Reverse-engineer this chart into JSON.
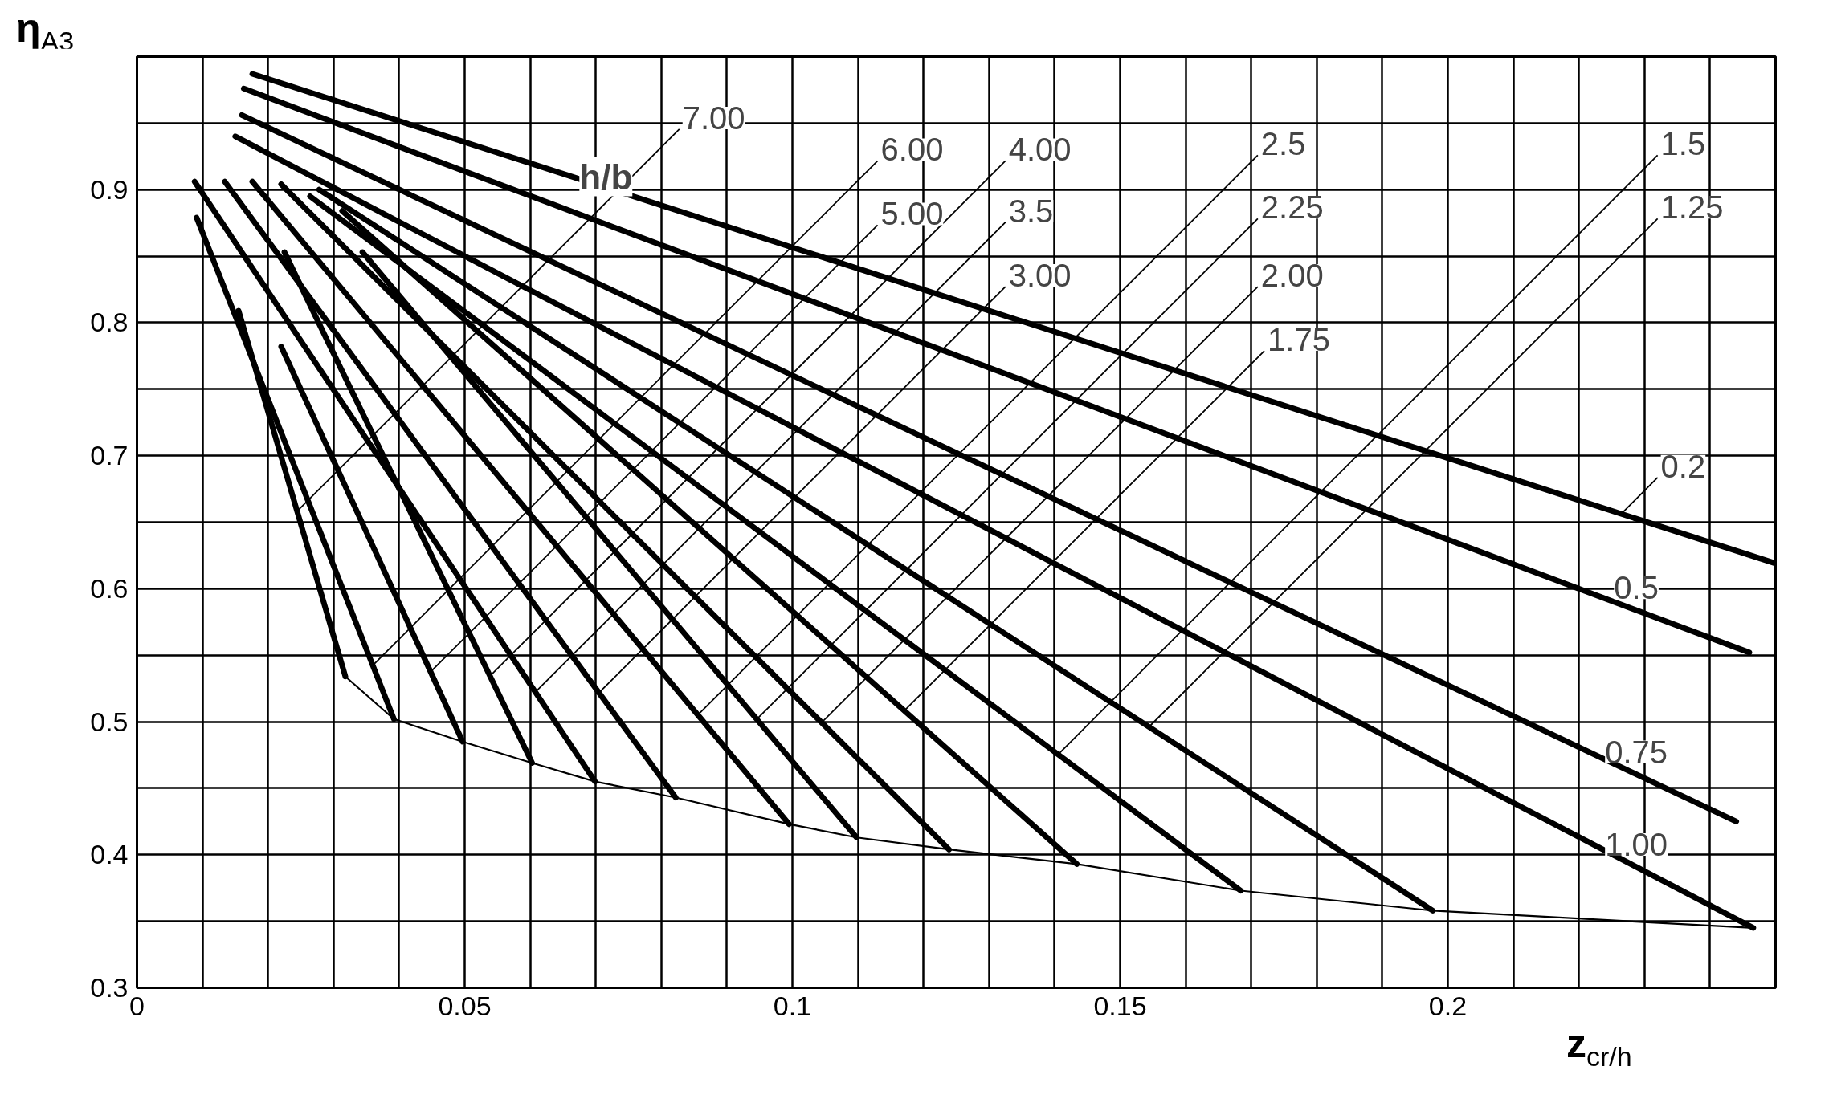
{
  "chart_data": {
    "type": "line",
    "xlabel": "z$_{cr/h}$",
    "ylabel": "η$_{A3}$",
    "legend_title": "h/b",
    "xlim": [
      0,
      0.25
    ],
    "ylim": [
      0.3,
      1.0
    ],
    "xticks": [
      0,
      {
        "value": 0.01,
        "label": null
      },
      {
        "value": 0.02,
        "label": null
      },
      {
        "value": 0.03,
        "label": null
      },
      {
        "value": 0.04,
        "label": null
      },
      0.05,
      {
        "value": 0.06,
        "label": null
      },
      {
        "value": 0.07,
        "label": null
      },
      {
        "value": 0.08,
        "label": null
      },
      {
        "value": 0.09,
        "label": null
      },
      0.1,
      {
        "value": 0.11,
        "label": null
      },
      {
        "value": 0.12,
        "label": null
      },
      {
        "value": 0.13,
        "label": null
      },
      {
        "value": 0.14,
        "label": null
      },
      0.15,
      {
        "value": 0.16,
        "label": null
      },
      {
        "value": 0.17,
        "label": null
      },
      {
        "value": 0.18,
        "label": null
      },
      {
        "value": 0.19,
        "label": null
      },
      0.2,
      {
        "value": 0.21,
        "label": null
      },
      {
        "value": 0.22,
        "label": null
      },
      {
        "value": 0.23,
        "label": null
      },
      {
        "value": 0.24,
        "label": null
      }
    ],
    "yticks": [
      0.3,
      {
        "value": 0.35,
        "label": null
      },
      0.4,
      {
        "value": 0.45,
        "label": null
      },
      0.5,
      {
        "value": 0.55,
        "label": null
      },
      0.6,
      {
        "value": 0.65,
        "label": null
      },
      0.7,
      {
        "value": 0.75,
        "label": null
      },
      0.8,
      {
        "value": 0.85,
        "label": null
      },
      0.9,
      {
        "value": 0.95,
        "label": null
      }
    ],
    "grid": true,
    "series": [
      {
        "name": "7.00",
        "color": "#000000",
        "x": [
          0.0155,
          0.0318
        ],
        "values": [
          0.809,
          0.534
        ]
      },
      {
        "name": "6.00",
        "color": "#000000",
        "x": [
          0.0091,
          0.0392
        ],
        "values": [
          0.879,
          0.502
        ]
      },
      {
        "name": "5.00",
        "color": "#000000",
        "x": [
          0.022,
          0.0497
        ],
        "values": [
          0.782,
          0.485
        ]
      },
      {
        "name": "4.00",
        "color": "#000000",
        "x": [
          0.0225,
          0.0603
        ],
        "values": [
          0.853,
          0.469
        ]
      },
      {
        "name": "3.5",
        "color": "#000000",
        "x": [
          0.0088,
          0.0699
        ],
        "values": [
          0.906,
          0.455
        ]
      },
      {
        "name": "3.00",
        "color": "#000000",
        "x": [
          0.0134,
          0.0822
        ],
        "values": [
          0.906,
          0.443
        ]
      },
      {
        "name": "2.5",
        "color": "#000000",
        "x": [
          0.0176,
          0.0995
        ],
        "values": [
          0.906,
          0.423
        ]
      },
      {
        "name": "2.25",
        "color": "#000000",
        "x": [
          0.0344,
          0.1098
        ],
        "values": [
          0.853,
          0.413
        ]
      },
      {
        "name": "2.00",
        "color": "#000000",
        "x": [
          0.022,
          0.1239
        ],
        "values": [
          0.904,
          0.404
        ]
      },
      {
        "name": "1.75",
        "color": "#000000",
        "x": [
          0.0313,
          0.1434
        ],
        "values": [
          0.884,
          0.393
        ]
      },
      {
        "name": "1.5",
        "color": "#000000",
        "x": [
          0.0264,
          0.1684
        ],
        "values": [
          0.895,
          0.373
        ]
      },
      {
        "name": "1.25",
        "color": "#000000",
        "x": [
          0.0278,
          0.1977
        ],
        "values": [
          0.9,
          0.358
        ]
      },
      {
        "name": "1.00",
        "color": "#000000",
        "x": [
          0.015,
          0.2466
        ],
        "values": [
          0.94,
          0.345
        ]
      },
      {
        "name": "0.75",
        "color": "#000000",
        "x": [
          0.016,
          0.244
        ],
        "values": [
          0.956,
          0.425
        ]
      },
      {
        "name": "0.5",
        "color": "#000000",
        "x": [
          0.0163,
          0.246
        ],
        "values": [
          0.976,
          0.552
        ]
      },
      {
        "name": "0.2",
        "color": "#000000",
        "x": [
          0.0176,
          0.25
        ],
        "values": [
          0.987,
          0.619
        ]
      },
      {
        "color": "#000000",
        "x": [
          0.0318,
          0.0392,
          0.0497,
          0.0603,
          0.0699,
          0.0822,
          0.0995,
          0.1098,
          0.1239,
          0.1434,
          0.1684,
          0.1977,
          0.2466
        ],
        "values": [
          0.534,
          0.502,
          0.485,
          0.469,
          0.455,
          0.443,
          0.423,
          0.413,
          0.404,
          0.393,
          0.373,
          0.358,
          0.345
        ]
      }
    ]
  }
}
